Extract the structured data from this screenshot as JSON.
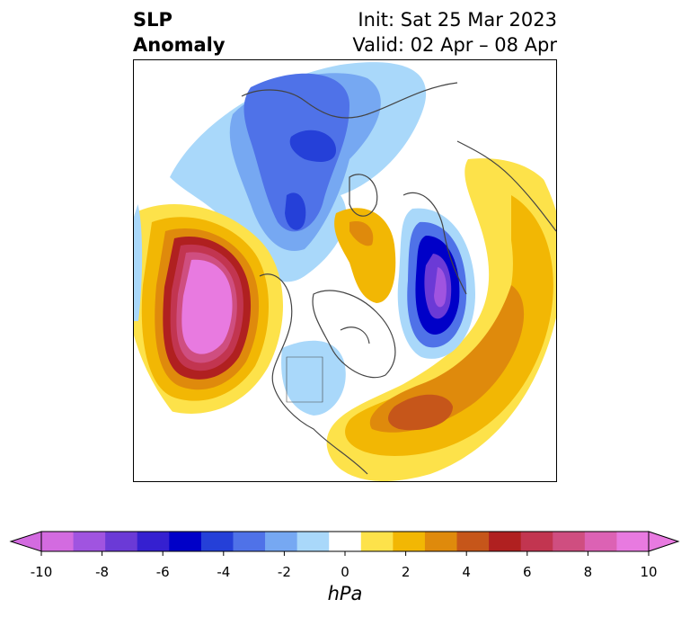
{
  "header": {
    "title_line1": "SLP",
    "title_line2": "Anomaly",
    "init_text": "Init: Sat 25 Mar 2023",
    "valid_text": "Valid: 02 Apr – 08 Apr"
  },
  "colorbar": {
    "unit": "hPa",
    "tick_labels": [
      "-10",
      "-8",
      "-6",
      "-4",
      "-2",
      "0",
      "2",
      "4",
      "6",
      "8",
      "10"
    ],
    "levels": [
      -10,
      -9,
      -8,
      -7,
      -6,
      -5,
      -4,
      -3,
      -2,
      -1,
      1,
      2,
      3,
      4,
      5,
      6,
      7,
      8,
      9,
      10
    ],
    "colors": [
      "#d36be0",
      "#a054e0",
      "#6b3ad6",
      "#3520d0",
      "#0000c8",
      "#2540d8",
      "#4f72e8",
      "#76a8f2",
      "#a9d8fa",
      "#ffffff",
      "#fde24a",
      "#f2b704",
      "#df8a0c",
      "#c6561a",
      "#b02020",
      "#c23550",
      "#cf4e80",
      "#dc62b4",
      "#e87ae0"
    ],
    "extend": "both"
  },
  "map": {
    "projection": "north-polar-stereographic",
    "variable": "sea-level-pressure-anomaly"
  }
}
